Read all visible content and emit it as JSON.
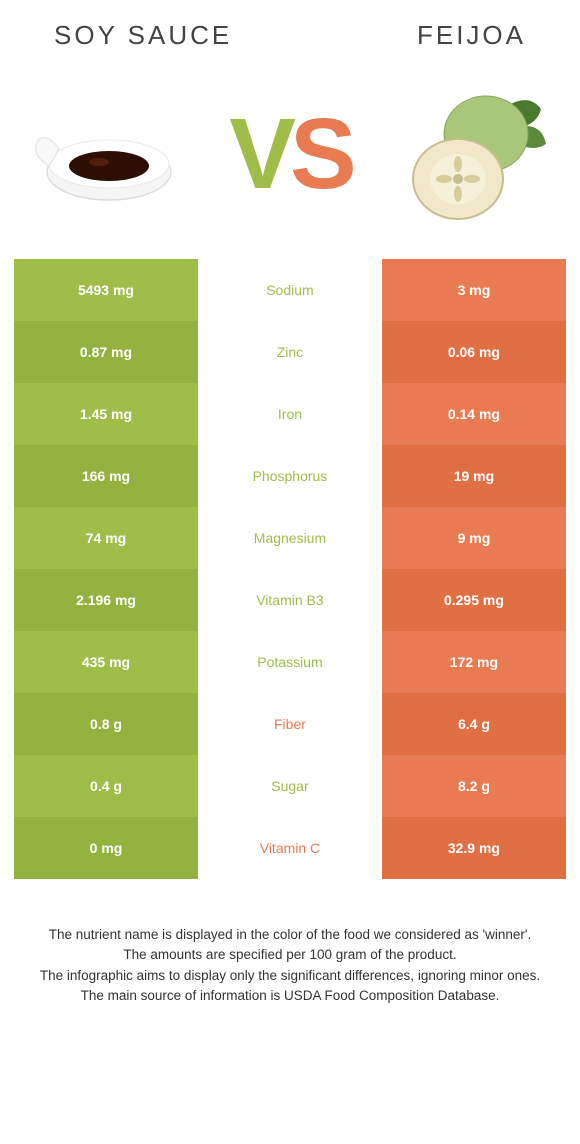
{
  "header": {
    "left_title": "Soy sauce",
    "right_title": "Feijoa",
    "vs_v": "V",
    "vs_s": "S"
  },
  "colors": {
    "left": "#9fbd49",
    "right": "#e87b51",
    "left_dark": "#94b23f",
    "right_dark": "#e06f44",
    "bg": "#ffffff"
  },
  "rows": [
    {
      "left": "5493 mg",
      "label": "Sodium",
      "right": "3 mg",
      "winner": "left"
    },
    {
      "left": "0.87 mg",
      "label": "Zinc",
      "right": "0.06 mg",
      "winner": "left"
    },
    {
      "left": "1.45 mg",
      "label": "Iron",
      "right": "0.14 mg",
      "winner": "left"
    },
    {
      "left": "166 mg",
      "label": "Phosphorus",
      "right": "19 mg",
      "winner": "left"
    },
    {
      "left": "74 mg",
      "label": "Magnesium",
      "right": "9 mg",
      "winner": "left"
    },
    {
      "left": "2.196 mg",
      "label": "Vitamin B3",
      "right": "0.295 mg",
      "winner": "left"
    },
    {
      "left": "435 mg",
      "label": "Potassium",
      "right": "172 mg",
      "winner": "left"
    },
    {
      "left": "0.8 g",
      "label": "Fiber",
      "right": "6.4 g",
      "winner": "right"
    },
    {
      "left": "0.4 g",
      "label": "Sugar",
      "right": "8.2 g",
      "winner": "left"
    },
    {
      "left": "0 mg",
      "label": "Vitamin C",
      "right": "32.9 mg",
      "winner": "right"
    }
  ],
  "footnotes": [
    "The nutrient name is displayed in the color of the food we considered as 'winner'.",
    "The amounts are specified per 100 gram of the product.",
    "The infographic aims to display only the significant differences, ignoring minor ones.",
    "The main source of information is USDA Food Composition Database."
  ]
}
